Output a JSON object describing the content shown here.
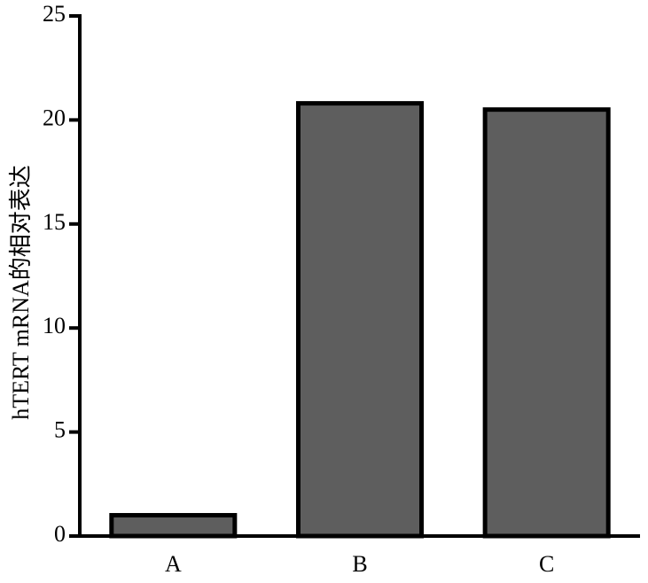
{
  "chart_data": {
    "type": "bar",
    "y_label": "hTERT mRNA的相对表达",
    "categories": [
      "A",
      "B",
      "C"
    ],
    "values": [
      1.0,
      20.8,
      20.5
    ],
    "color": "#5e5e5e",
    "ylim": [
      0,
      25
    ],
    "yticks": [
      0,
      5,
      10,
      15,
      20,
      25
    ]
  }
}
